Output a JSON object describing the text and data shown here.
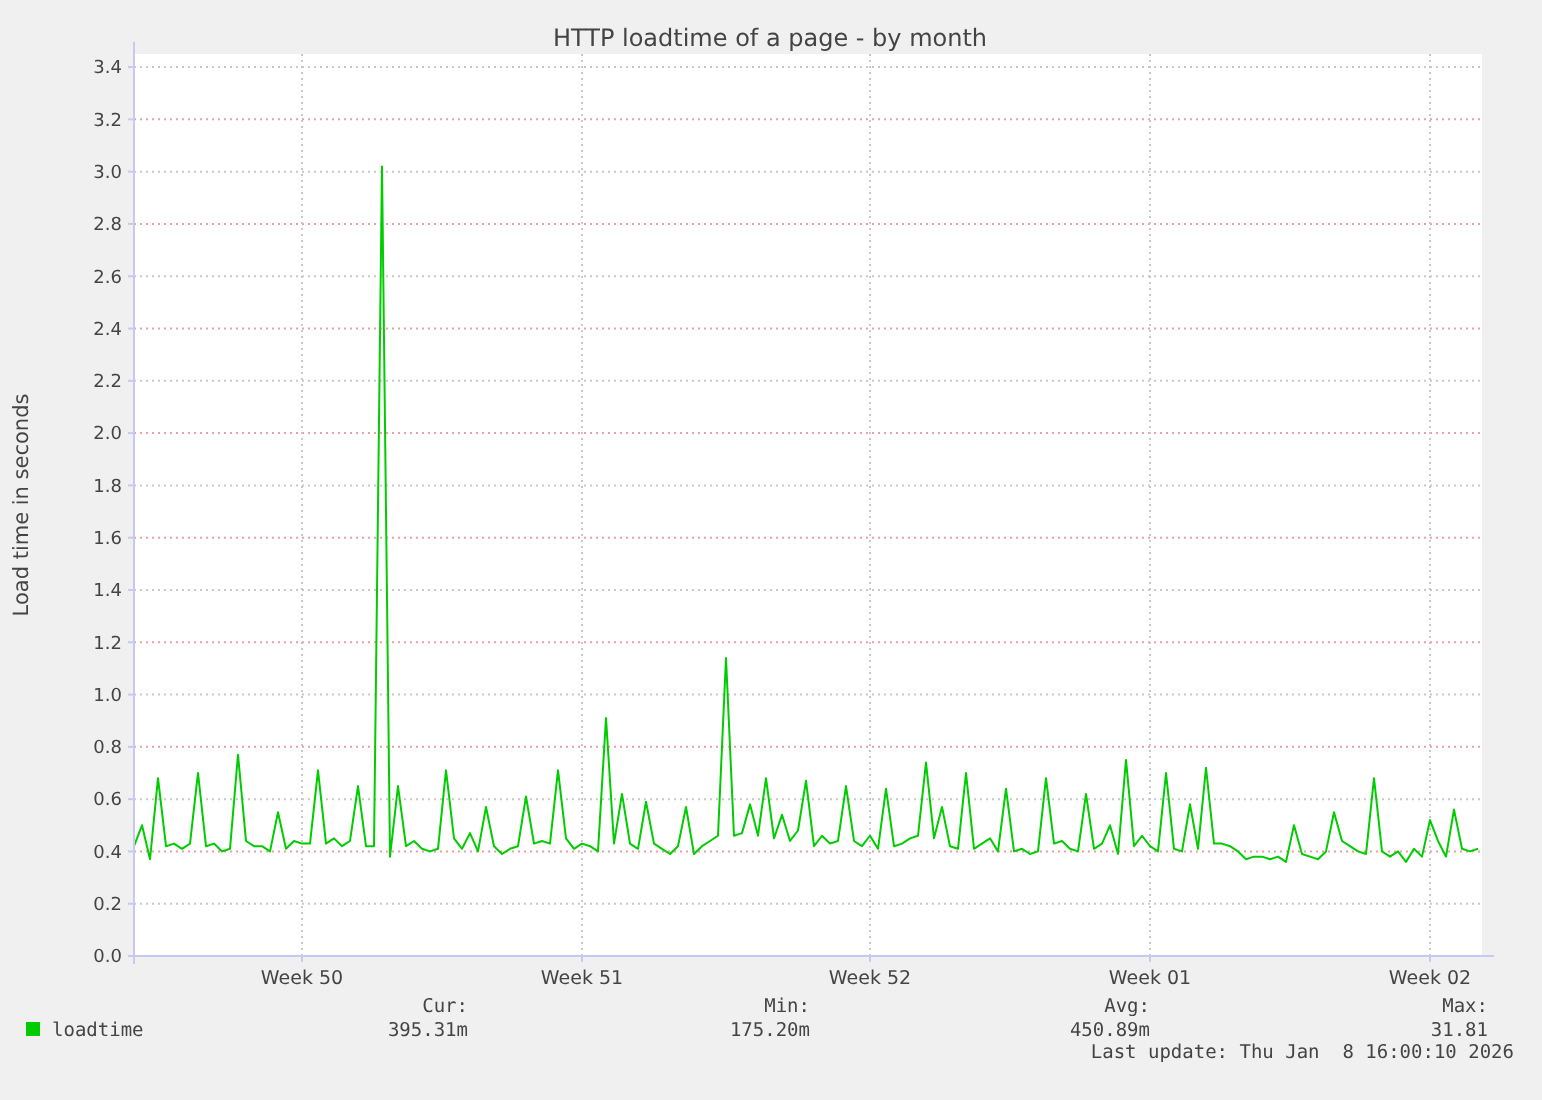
{
  "chart_data": {
    "type": "line",
    "title": "HTTP loadtime of a page - by month",
    "ylabel": "Load time in seconds",
    "categories": [
      null,
      null,
      null,
      null,
      null,
      null,
      null,
      null,
      null,
      null,
      null,
      null,
      null,
      null,
      null,
      null,
      null,
      null,
      null,
      null,
      null,
      "Week 50",
      null,
      null,
      null,
      null,
      null,
      null,
      null,
      null,
      null,
      null,
      null,
      null,
      null,
      null,
      null,
      null,
      null,
      null,
      null,
      null,
      null,
      null,
      null,
      null,
      null,
      null,
      null,
      null,
      null,
      null,
      null,
      null,
      null,
      null,
      "Week 51",
      null,
      null,
      null,
      null,
      null,
      null,
      null,
      null,
      null,
      null,
      null,
      null,
      null,
      null,
      null,
      null,
      null,
      null,
      null,
      null,
      null,
      null,
      null,
      null,
      null,
      null,
      null,
      null,
      null,
      null,
      null,
      null,
      null,
      null,
      null,
      "Week 52",
      null,
      null,
      null,
      null,
      null,
      null,
      null,
      null,
      null,
      null,
      null,
      null,
      null,
      null,
      null,
      null,
      null,
      null,
      null,
      null,
      null,
      null,
      null,
      null,
      null,
      null,
      null,
      null,
      null,
      null,
      null,
      null,
      null,
      null,
      "Week 01",
      null,
      null,
      null,
      null,
      null,
      null,
      null,
      null,
      null,
      null,
      null,
      null,
      null,
      null,
      null,
      null,
      null,
      null,
      null,
      null,
      null,
      null,
      null,
      null,
      null,
      null,
      null,
      null,
      null,
      null,
      null,
      null,
      null,
      null,
      "Week 02",
      null,
      null,
      null,
      null,
      null,
      null
    ],
    "ylim": [
      0,
      3.45
    ],
    "yticks": [
      {
        "value": 0,
        "label": "0.0"
      },
      0.2,
      0.4,
      0.6,
      0.8,
      {
        "value": 1,
        "label": "1.0"
      },
      1.2,
      1.4,
      1.6,
      1.8,
      {
        "value": 2,
        "label": "2.0"
      },
      2.2,
      2.4,
      2.6,
      2.8,
      {
        "value": 3,
        "label": "3.0"
      },
      3.2,
      3.4
    ],
    "grid": true,
    "legend": "bottom",
    "marker": "none",
    "line_style": "solid",
    "annotations": [
      "Cur:",
      "395.31m",
      "Min:",
      "175.20m",
      "Avg:",
      "450.89m",
      "Max:",
      "31.81",
      "Last update: Thu Jan  8 16:00:10 2026"
    ],
    "series": [
      {
        "name": "loadtime",
        "color": "#00cc00",
        "values": [
          0.42,
          0.5,
          0.37,
          0.68,
          0.42,
          0.43,
          0.41,
          0.43,
          0.7,
          0.42,
          0.43,
          0.4,
          0.41,
          0.77,
          0.44,
          0.42,
          0.42,
          0.4,
          0.55,
          0.41,
          0.44,
          0.43,
          0.43,
          0.71,
          0.43,
          0.45,
          0.42,
          0.44,
          0.65,
          0.42,
          0.42,
          3.02,
          0.38,
          0.65,
          0.42,
          0.44,
          0.41,
          0.4,
          0.41,
          0.71,
          0.45,
          0.41,
          0.47,
          0.4,
          0.57,
          0.42,
          0.39,
          0.41,
          0.42,
          0.61,
          0.43,
          0.44,
          0.43,
          0.71,
          0.45,
          0.41,
          0.43,
          0.42,
          0.4,
          0.91,
          0.43,
          0.62,
          0.43,
          0.41,
          0.59,
          0.43,
          0.41,
          0.39,
          0.42,
          0.57,
          0.39,
          0.42,
          0.44,
          0.46,
          1.14,
          0.46,
          0.47,
          0.58,
          0.46,
          0.68,
          0.45,
          0.54,
          0.44,
          0.48,
          0.67,
          0.42,
          0.46,
          0.43,
          0.44,
          0.65,
          0.44,
          0.42,
          0.46,
          0.41,
          0.64,
          0.42,
          0.43,
          0.45,
          0.46,
          0.74,
          0.45,
          0.57,
          0.42,
          0.41,
          0.7,
          0.41,
          0.43,
          0.45,
          0.4,
          0.64,
          0.4,
          0.41,
          0.39,
          0.4,
          0.68,
          0.43,
          0.44,
          0.41,
          0.4,
          0.62,
          0.41,
          0.43,
          0.5,
          0.39,
          0.75,
          0.42,
          0.46,
          0.42,
          0.4,
          0.7,
          0.41,
          0.4,
          0.58,
          0.41,
          0.72,
          0.43,
          0.43,
          0.42,
          0.4,
          0.37,
          0.38,
          0.38,
          0.37,
          0.38,
          0.36,
          0.5,
          0.39,
          0.38,
          0.37,
          0.4,
          0.55,
          0.44,
          0.42,
          0.4,
          0.39,
          0.68,
          0.4,
          0.38,
          0.4,
          0.36,
          0.41,
          0.38,
          0.52,
          0.44,
          0.38,
          0.56,
          0.41,
          0.4,
          0.41
        ]
      }
    ]
  }
}
